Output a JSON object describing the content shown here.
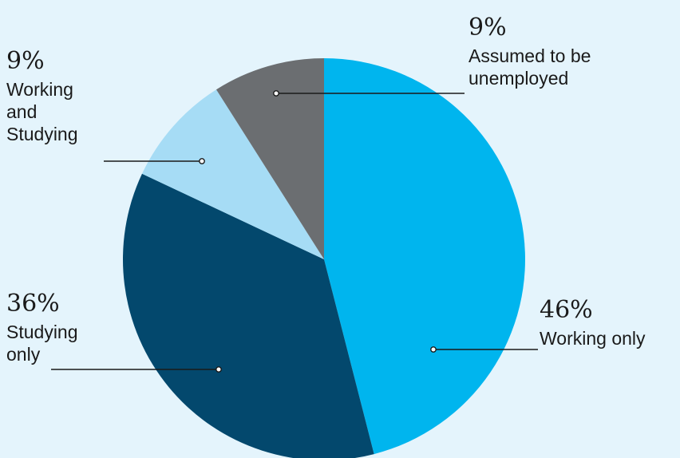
{
  "chart_data": {
    "type": "pie",
    "title": "",
    "start_angle_deg": 0,
    "direction": "clockwise",
    "slices": [
      {
        "label_lines": [
          "Working only"
        ],
        "value": 46,
        "value_text": "46%",
        "color": "#00b5ee"
      },
      {
        "label_lines": [
          "Studying",
          "only"
        ],
        "value": 36,
        "value_text": "36%",
        "color": "#03486d"
      },
      {
        "label_lines": [
          "Working",
          "and",
          "Studying"
        ],
        "value": 9,
        "value_text": "9%",
        "color": "#a6dcf5"
      },
      {
        "label_lines": [
          "Assumed to be",
          "unemployed"
        ],
        "value": 9,
        "value_text": "9%",
        "color": "#6b6e71"
      }
    ]
  },
  "colors": {
    "background": "#e4f4fc",
    "text": "#1a1a1a"
  }
}
